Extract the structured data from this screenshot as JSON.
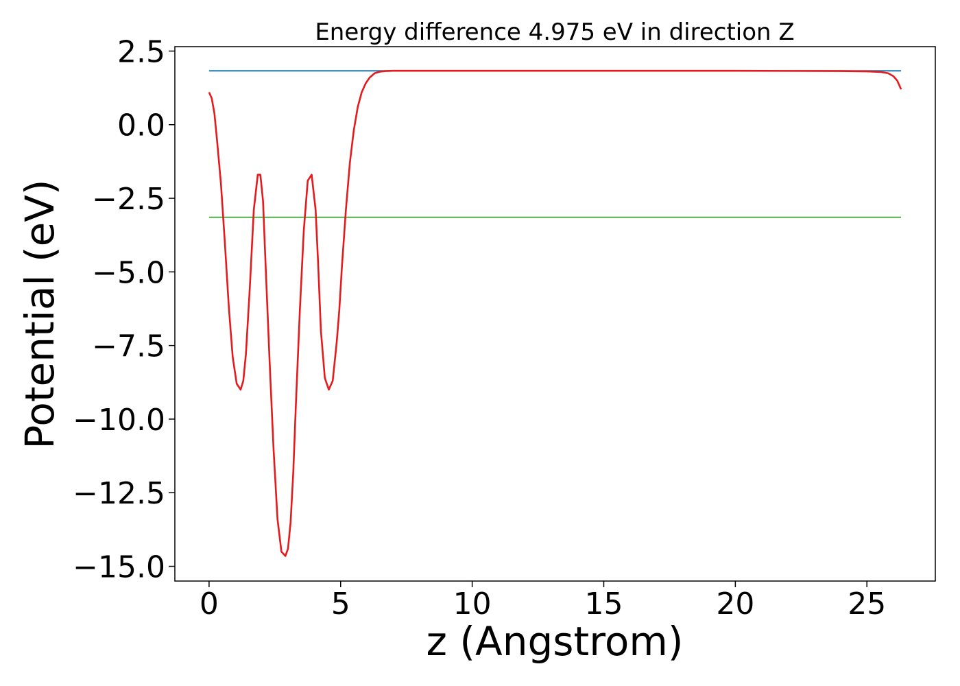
{
  "chart_data": {
    "type": "line",
    "title": "Energy difference 4.975 eV in direction Z",
    "xlabel": "z (Angstrom)",
    "ylabel": "Potential (eV)",
    "xlim": [
      -1.3,
      27.6
    ],
    "ylim": [
      -15.5,
      2.65
    ],
    "xticks": [
      0,
      5,
      10,
      15,
      20,
      25
    ],
    "xtick_labels": [
      "0",
      "5",
      "10",
      "15",
      "20",
      "25"
    ],
    "yticks": [
      2.5,
      0.0,
      -2.5,
      -5.0,
      -7.5,
      -10.0,
      -12.5,
      -15.0
    ],
    "ytick_labels": [
      "2.5",
      "0.0",
      "−2.5",
      "−5.0",
      "−7.5",
      "−10.0",
      "−12.5",
      "−15.0"
    ],
    "grid": false,
    "series": [
      {
        "color": "#e41a1c",
        "x": [
          0.0,
          0.1,
          0.2,
          0.3,
          0.45,
          0.6,
          0.75,
          0.9,
          1.05,
          1.2,
          1.3,
          1.4,
          1.55,
          1.7,
          1.85,
          1.95,
          2.05,
          2.15,
          2.3,
          2.45,
          2.6,
          2.75,
          2.9,
          3.0,
          3.1,
          3.2,
          3.3,
          3.45,
          3.6,
          3.75,
          3.9,
          4.05,
          4.15,
          4.25,
          4.4,
          4.55,
          4.7,
          4.85,
          4.95,
          5.05,
          5.2,
          5.35,
          5.5,
          5.65,
          5.8,
          5.95,
          6.1,
          6.3,
          6.5,
          6.7,
          7.0,
          7.4,
          8.0,
          9.0,
          12.0,
          16.0,
          20.0,
          24.0,
          25.0,
          25.5,
          25.8,
          26.0,
          26.15,
          26.3
        ],
        "y": [
          1.1,
          0.9,
          0.4,
          -0.5,
          -2.0,
          -4.0,
          -6.2,
          -7.9,
          -8.8,
          -9.0,
          -8.7,
          -7.8,
          -5.5,
          -2.9,
          -1.7,
          -1.7,
          -2.6,
          -4.8,
          -8.0,
          -11.0,
          -13.4,
          -14.5,
          -14.65,
          -14.4,
          -13.5,
          -11.8,
          -9.5,
          -6.3,
          -3.6,
          -1.9,
          -1.7,
          -2.9,
          -4.8,
          -7.0,
          -8.6,
          -9.0,
          -8.7,
          -7.4,
          -6.3,
          -4.8,
          -2.9,
          -1.3,
          -0.2,
          0.6,
          1.1,
          1.4,
          1.6,
          1.75,
          1.8,
          1.82,
          1.83,
          1.83,
          1.83,
          1.83,
          1.83,
          1.83,
          1.83,
          1.82,
          1.81,
          1.79,
          1.75,
          1.65,
          1.5,
          1.2
        ]
      },
      {
        "color": "#1f77b4",
        "x": [
          0.0,
          26.3
        ],
        "y": [
          1.83,
          1.83
        ]
      },
      {
        "color": "#4daf4a",
        "x": [
          0.0,
          26.3
        ],
        "y": [
          -3.145,
          -3.145
        ]
      }
    ]
  }
}
